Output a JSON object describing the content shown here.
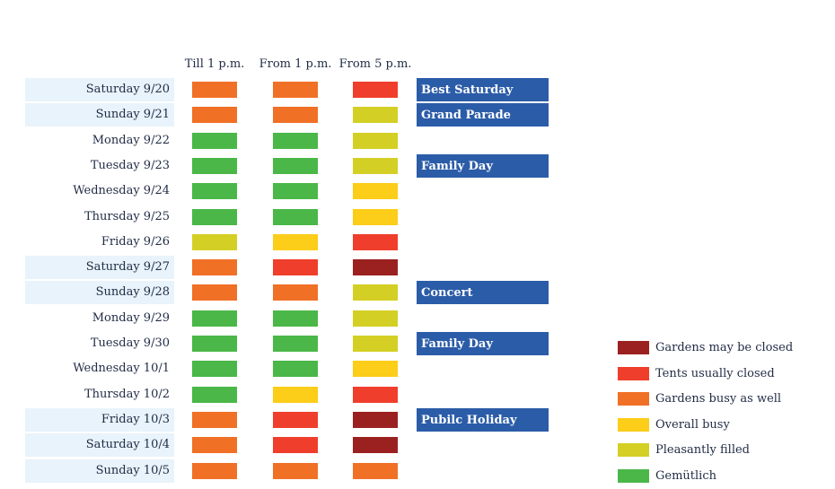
{
  "chart_data": {
    "type": "table",
    "columns": [
      "Till 1 p.m.",
      "From 1 p.m.",
      "From 5 p.m."
    ],
    "levels": {
      "closed": {
        "label": "Gardens may be closed",
        "color": "#9b2020"
      },
      "tents": {
        "label": "Tents usually closed",
        "color": "#ef3e2b"
      },
      "busy": {
        "label": "Gardens busy as well",
        "color": "#f07026"
      },
      "overall": {
        "label": "Overall busy",
        "color": "#fccd19"
      },
      "pleasant": {
        "label": "Pleasantly filled",
        "color": "#d4cf24"
      },
      "gemutlich": {
        "label": "Gemütlich",
        "color": "#4bb748"
      }
    },
    "legend_order": [
      "closed",
      "tents",
      "busy",
      "overall",
      "pleasant",
      "gemutlich"
    ],
    "rows": [
      {
        "date": "Saturday 9/20",
        "highlight": true,
        "levels": [
          "busy",
          "busy",
          "tents"
        ],
        "event": "Best Saturday"
      },
      {
        "date": "Sunday 9/21",
        "highlight": true,
        "levels": [
          "busy",
          "busy",
          "pleasant"
        ],
        "event": "Grand Parade"
      },
      {
        "date": "Monday 9/22",
        "highlight": false,
        "levels": [
          "gemutlich",
          "gemutlich",
          "pleasant"
        ],
        "event": ""
      },
      {
        "date": "Tuesday 9/23",
        "highlight": false,
        "levels": [
          "gemutlich",
          "gemutlich",
          "pleasant"
        ],
        "event": "Family Day"
      },
      {
        "date": "Wednesday 9/24",
        "highlight": false,
        "levels": [
          "gemutlich",
          "gemutlich",
          "overall"
        ],
        "event": ""
      },
      {
        "date": "Thursday 9/25",
        "highlight": false,
        "levels": [
          "gemutlich",
          "gemutlich",
          "overall"
        ],
        "event": ""
      },
      {
        "date": "Friday 9/26",
        "highlight": false,
        "levels": [
          "pleasant",
          "overall",
          "tents"
        ],
        "event": ""
      },
      {
        "date": "Saturday 9/27",
        "highlight": true,
        "levels": [
          "busy",
          "tents",
          "closed"
        ],
        "event": ""
      },
      {
        "date": "Sunday 9/28",
        "highlight": true,
        "levels": [
          "busy",
          "busy",
          "pleasant"
        ],
        "event": "Concert"
      },
      {
        "date": "Monday 9/29",
        "highlight": false,
        "levels": [
          "gemutlich",
          "gemutlich",
          "pleasant"
        ],
        "event": ""
      },
      {
        "date": "Tuesday 9/30",
        "highlight": false,
        "levels": [
          "gemutlich",
          "gemutlich",
          "pleasant"
        ],
        "event": "Family Day"
      },
      {
        "date": "Wednesday 10/1",
        "highlight": false,
        "levels": [
          "gemutlich",
          "gemutlich",
          "overall"
        ],
        "event": ""
      },
      {
        "date": "Thursday 10/2",
        "highlight": false,
        "levels": [
          "gemutlich",
          "overall",
          "tents"
        ],
        "event": ""
      },
      {
        "date": "Friday 10/3",
        "highlight": true,
        "levels": [
          "busy",
          "tents",
          "closed"
        ],
        "event": "Pubilc Holiday"
      },
      {
        "date": "Saturday 10/4",
        "highlight": true,
        "levels": [
          "busy",
          "tents",
          "closed"
        ],
        "event": ""
      },
      {
        "date": "Sunday 10/5",
        "highlight": true,
        "levels": [
          "busy",
          "busy",
          "busy"
        ],
        "event": ""
      }
    ]
  }
}
